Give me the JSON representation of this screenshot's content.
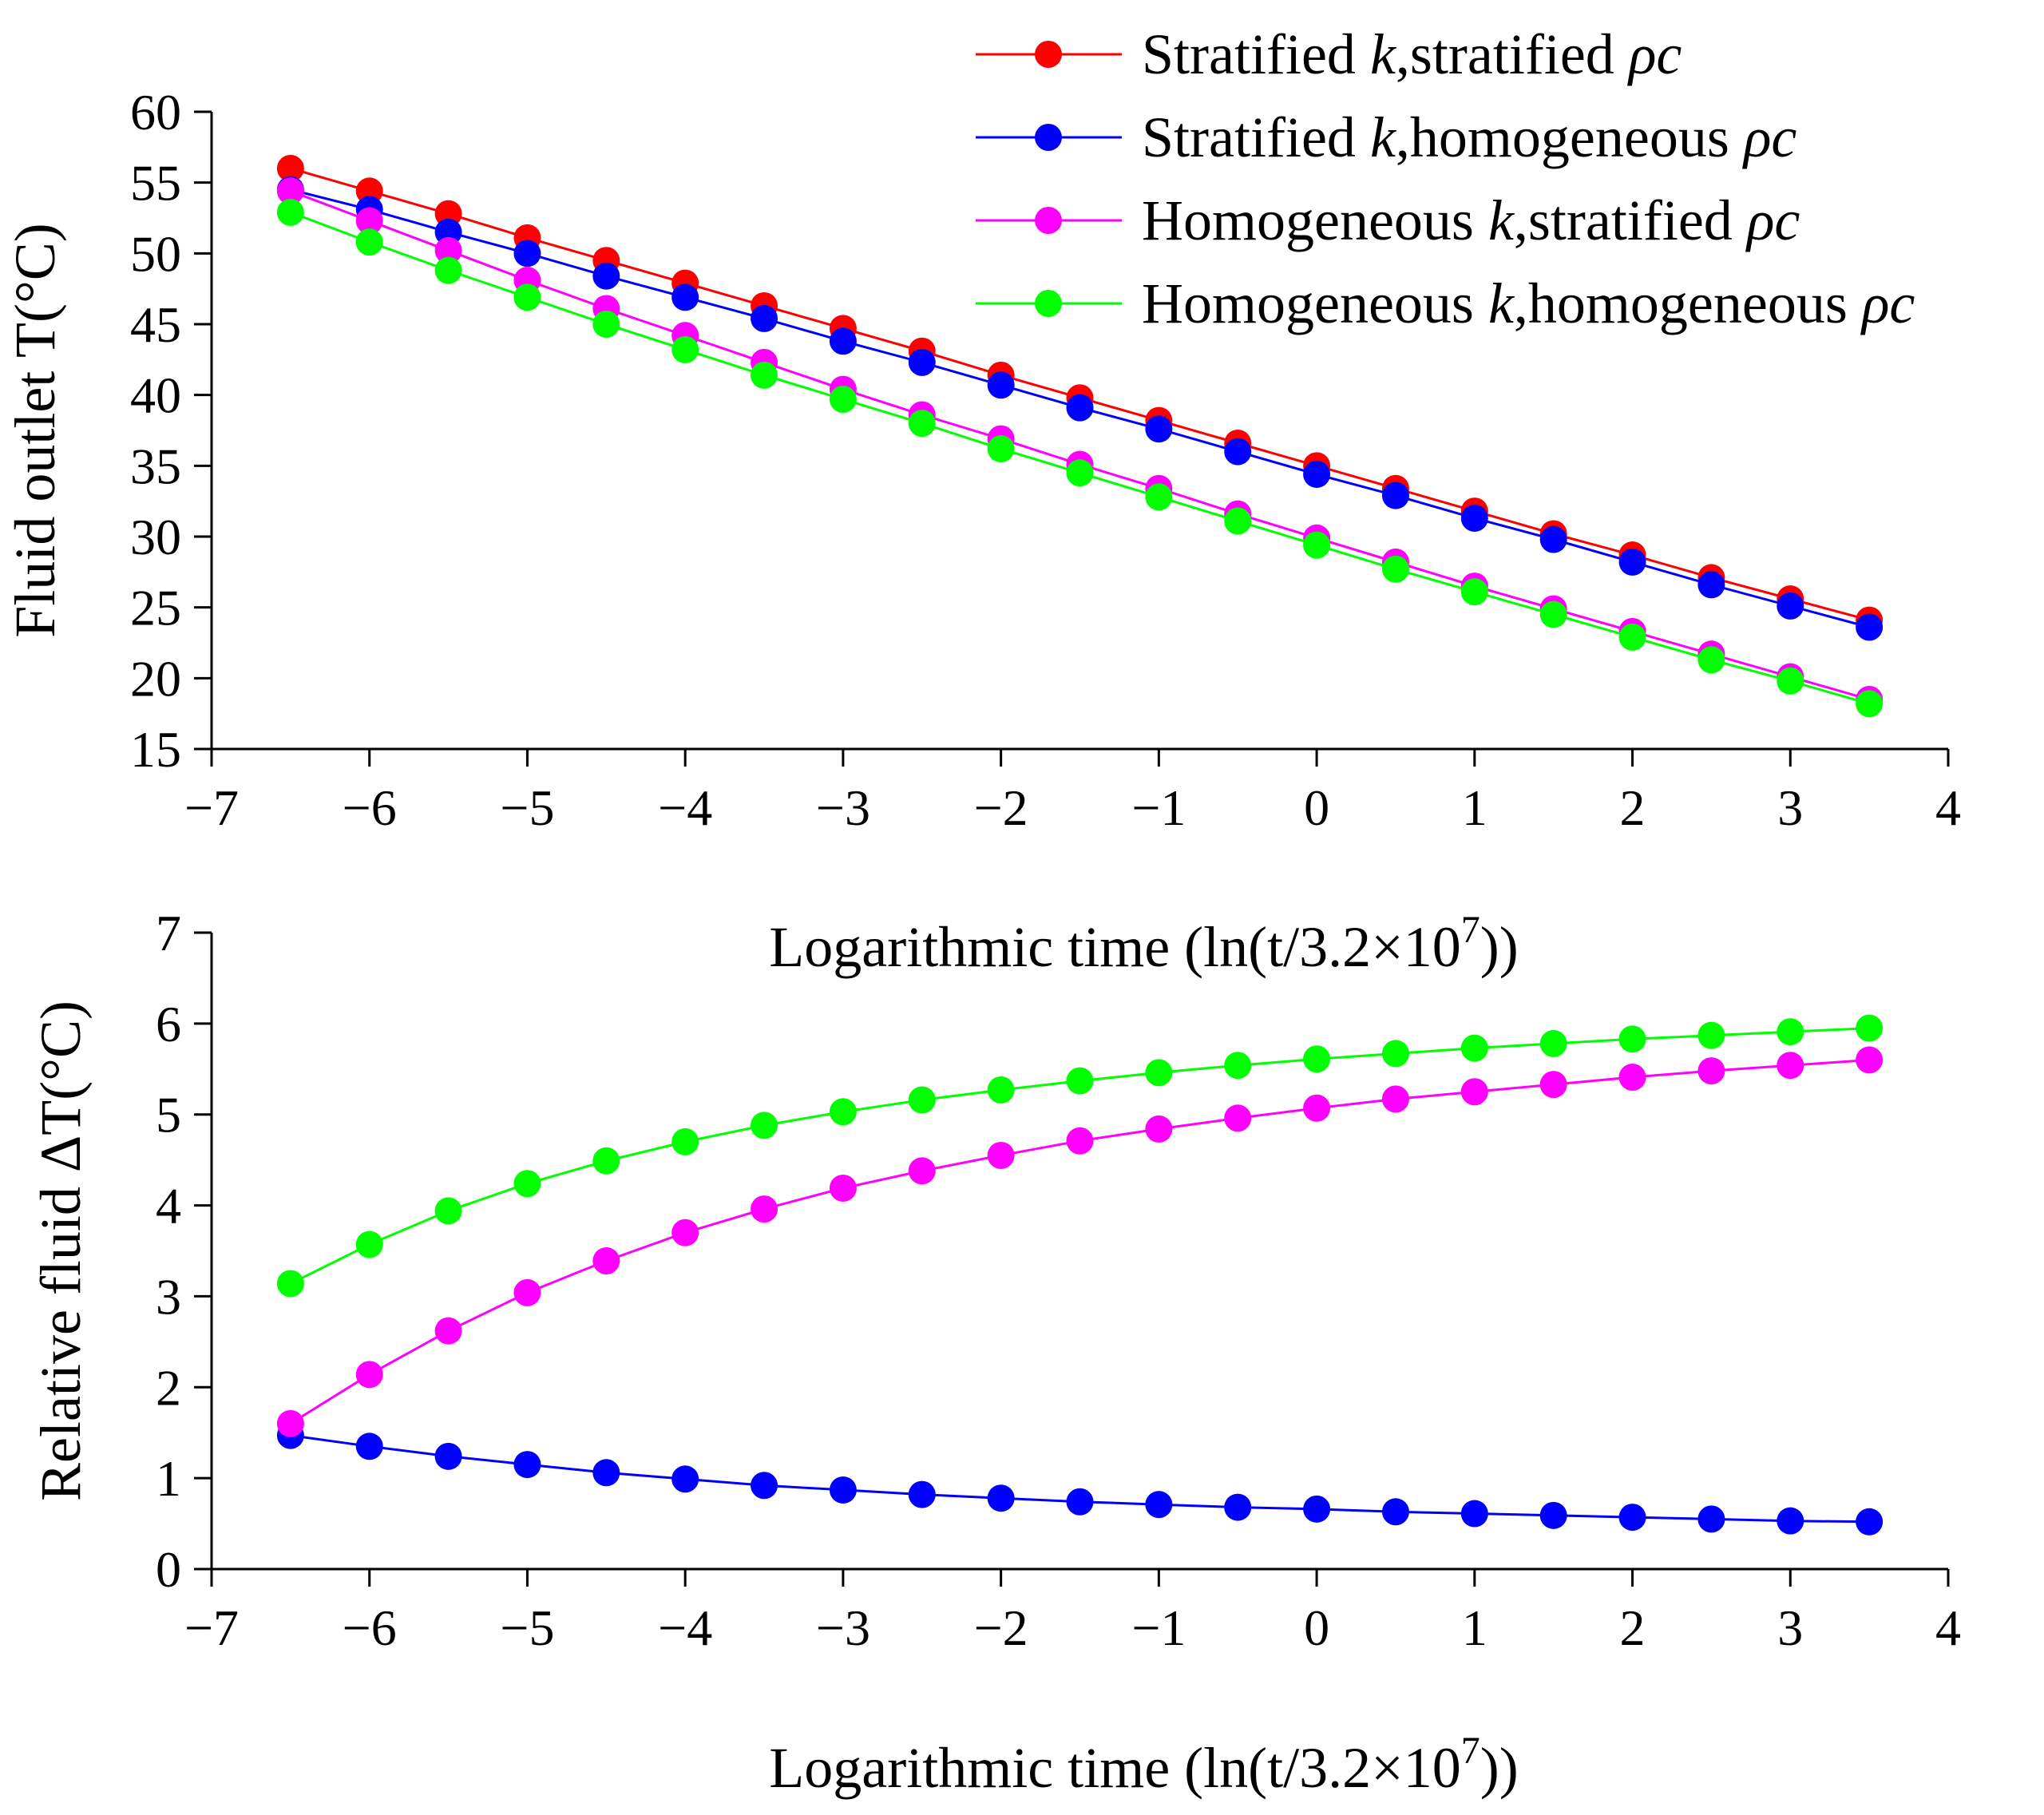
{
  "chart_data": [
    {
      "type": "line",
      "title": "",
      "xlabel": "Logarithmic time (ln(t/3.2×10⁷))",
      "ylabel": "Fluid outlet T(°C)",
      "xlim": [
        -7,
        4
      ],
      "ylim": [
        15,
        60
      ],
      "xticks": [
        "−7",
        "−6",
        "−5",
        "−4",
        "−3",
        "−2",
        "−1",
        "0",
        "1",
        "2",
        "3",
        "4"
      ],
      "yticks": [
        "15",
        "20",
        "25",
        "30",
        "35",
        "40",
        "45",
        "50",
        "55",
        "60"
      ],
      "legend_position": "top-right",
      "x": [
        -6.5,
        -6,
        -5.5,
        -5,
        -4.5,
        -4,
        -3.5,
        -3,
        -2.5,
        -2,
        -1.5,
        -1,
        -0.5,
        0,
        0.5,
        1,
        1.5,
        2,
        2.5,
        3,
        3.5
      ],
      "series": [
        {
          "name": "Stratified k,stratified ρc",
          "color": "#ff0000",
          "values": [
            56.0,
            54.4,
            52.8,
            51.1,
            49.5,
            47.9,
            46.3,
            44.7,
            43.1,
            41.4,
            39.8,
            38.2,
            36.6,
            35.0,
            33.4,
            31.8,
            30.2,
            28.7,
            27.1,
            25.6,
            24.1
          ]
        },
        {
          "name": "Stratified k,homogeneous ρc",
          "color": "#0000ff",
          "values": [
            54.5,
            53.1,
            51.5,
            50.0,
            48.4,
            46.9,
            45.4,
            43.8,
            42.3,
            40.7,
            39.1,
            37.6,
            36.0,
            34.4,
            32.9,
            31.3,
            29.8,
            28.2,
            26.6,
            25.1,
            23.6
          ]
        },
        {
          "name": "Homogeneous k,stratified ρc",
          "color": "#ff00ff",
          "values": [
            54.4,
            52.3,
            50.2,
            48.1,
            46.1,
            44.2,
            42.3,
            40.4,
            38.6,
            36.9,
            35.1,
            33.4,
            31.6,
            29.9,
            28.2,
            26.5,
            24.9,
            23.3,
            21.7,
            20.1,
            18.5
          ]
        },
        {
          "name": "Homogeneous k,homogeneous ρc",
          "color": "#00ff00",
          "values": [
            52.9,
            50.8,
            48.8,
            46.9,
            45.0,
            43.2,
            41.4,
            39.7,
            38.0,
            36.2,
            34.5,
            32.8,
            31.1,
            29.4,
            27.7,
            26.1,
            24.5,
            22.9,
            21.3,
            19.8,
            18.2
          ]
        }
      ]
    },
    {
      "type": "line",
      "title": "",
      "xlabel": "Logarithmic time (ln(t/3.2×10⁷))",
      "ylabel": "Relative fluid ΔT(°C)",
      "xlim": [
        -7,
        4
      ],
      "ylim": [
        0,
        7
      ],
      "xticks": [
        "−7",
        "−6",
        "−5",
        "−4",
        "−3",
        "−2",
        "−1",
        "0",
        "1",
        "2",
        "3",
        "4"
      ],
      "yticks": [
        "0",
        "1",
        "2",
        "3",
        "4",
        "5",
        "6",
        "7"
      ],
      "x": [
        -6.5,
        -6,
        -5.5,
        -5,
        -4.5,
        -4,
        -3.5,
        -3,
        -2.5,
        -2,
        -1.5,
        -1,
        -0.5,
        0,
        0.5,
        1,
        1.5,
        2,
        2.5,
        3,
        3.5
      ],
      "series": [
        {
          "name": "Stratified k,homogeneous ρc",
          "color": "#0000ff",
          "values": [
            1.47,
            1.35,
            1.24,
            1.15,
            1.06,
            0.99,
            0.92,
            0.87,
            0.82,
            0.78,
            0.74,
            0.71,
            0.68,
            0.66,
            0.63,
            0.61,
            0.59,
            0.57,
            0.55,
            0.53,
            0.52
          ]
        },
        {
          "name": "Homogeneous k,stratified ρc",
          "color": "#ff00ff",
          "values": [
            1.6,
            2.14,
            2.62,
            3.04,
            3.39,
            3.7,
            3.96,
            4.19,
            4.38,
            4.55,
            4.71,
            4.84,
            4.96,
            5.07,
            5.17,
            5.25,
            5.33,
            5.41,
            5.48,
            5.54,
            5.6
          ]
        },
        {
          "name": "Homogeneous k,homogeneous ρc",
          "color": "#00ff00",
          "values": [
            3.14,
            3.57,
            3.94,
            4.24,
            4.49,
            4.7,
            4.88,
            5.03,
            5.16,
            5.27,
            5.37,
            5.46,
            5.54,
            5.61,
            5.67,
            5.73,
            5.78,
            5.83,
            5.87,
            5.91,
            5.95
          ]
        }
      ]
    }
  ],
  "legend": {
    "items": [
      {
        "prefix": "Stratified ",
        "k": "k",
        "suffix": ",stratified ",
        "rho": "ρc",
        "color": "#ff0000"
      },
      {
        "prefix": "Stratified ",
        "k": "k",
        "suffix": ",homogeneous ",
        "rho": "ρc",
        "color": "#0000ff"
      },
      {
        "prefix": "Homogeneous ",
        "k": "k",
        "suffix": ",stratified ",
        "rho": "ρc",
        "color": "#ff00ff"
      },
      {
        "prefix": "Homogeneous ",
        "k": "k",
        "suffix": ",homogeneous ",
        "rho": "ρc",
        "color": "#00ff00"
      }
    ]
  },
  "xlabel_parts": {
    "before": "Logarithmic time (ln(t/3.2×10",
    "exp": "7",
    "after": "))"
  }
}
